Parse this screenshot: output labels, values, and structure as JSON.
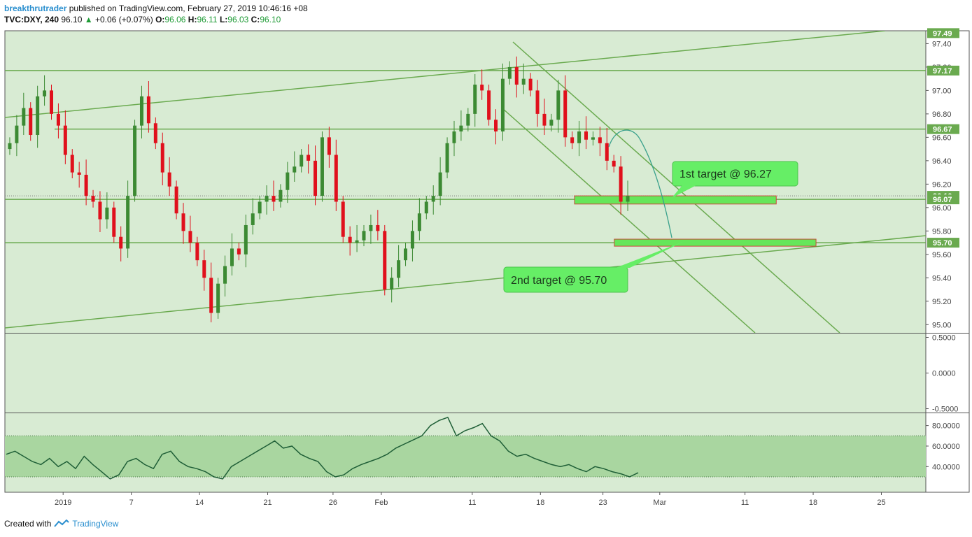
{
  "header": {
    "author": "breakthrutrader",
    "published": "published on TradingView.com, February 27, 2019 10:46:16 +08",
    "symbol": "TVC:DXY, 240",
    "last": "96.10",
    "change_icon": "triangle-up-icon",
    "change": "+0.06 (+0.07%)",
    "open_label": "O:",
    "open": "96.06",
    "high_label": "H:",
    "high": "96.11",
    "low_label": "L:",
    "low": "96.03",
    "close_label": "C:",
    "close": "96.10"
  },
  "footer": {
    "created_with": "Created with",
    "brand": "TradingView",
    "logo_icon": "tradingview-logo-icon"
  },
  "colors": {
    "panel_bg": "#d8ebd3",
    "line_green": "#6aaa4f",
    "candle_up": "#3c8a33",
    "candle_down": "#e0101c",
    "rsi_line": "#1f5f37",
    "rsi_band": "#a9d6a0",
    "zone_fill": "#66e65a",
    "zone_border": "#c9473a",
    "badge_bg": "#6aaa4f",
    "callout_bg": "#66ee66",
    "curve": "#3aa18c"
  },
  "price_axis": {
    "ticks": [
      "97.40",
      "97.20",
      "97.00",
      "96.80",
      "96.60",
      "96.40",
      "96.20",
      "96.00",
      "95.80",
      "95.60",
      "95.40",
      "95.20",
      "95.00"
    ],
    "tick_values": [
      97.4,
      97.2,
      97.0,
      96.8,
      96.6,
      96.4,
      96.2,
      96.0,
      95.8,
      95.6,
      95.4,
      95.2,
      95.0
    ],
    "badges": [
      {
        "label": "97.49",
        "value": 97.49
      },
      {
        "label": "97.17",
        "value": 97.17
      },
      {
        "label": "96.67",
        "value": 96.67
      },
      {
        "label": "96.10",
        "value": 96.1
      },
      {
        "label": "96.07",
        "value": 96.07
      },
      {
        "label": "95.70",
        "value": 95.7
      }
    ]
  },
  "osc_axis": {
    "ticks": [
      "0.5000",
      "0.0000",
      "-0.5000"
    ],
    "tick_values": [
      0.5,
      0.0,
      -0.5
    ]
  },
  "rsi_axis": {
    "ticks": [
      "80.0000",
      "60.0000",
      "40.0000"
    ],
    "tick_values": [
      80,
      60,
      40
    ],
    "band": [
      30,
      70
    ]
  },
  "time_axis": {
    "labels": [
      "2019",
      "7",
      "14",
      "21",
      "26",
      "Feb",
      "11",
      "18",
      "23",
      "Mar",
      "11",
      "18",
      "25"
    ],
    "bar_index": [
      20,
      44,
      68,
      92,
      115,
      132,
      164,
      188,
      210,
      230,
      260,
      284,
      308
    ]
  },
  "horizontal_levels": [
    97.17,
    96.67,
    96.07,
    95.7
  ],
  "zones": [
    {
      "start_bar": 200,
      "end_bar": 271,
      "top": 96.1,
      "bottom": 96.03
    },
    {
      "start_bar": 214,
      "end_bar": 285,
      "top": 95.73,
      "bottom": 95.67
    }
  ],
  "callouts": [
    {
      "text": "1st target @ 96.27",
      "name": "callout-first-target"
    },
    {
      "text": "2nd target @ 95.70",
      "name": "callout-second-target"
    }
  ],
  "chart_data": {
    "type": "candlestick",
    "instrument": "TVC:DXY",
    "interval": "240",
    "price_ylim": [
      94.93,
      97.51
    ],
    "rsi_ylim": [
      15,
      92
    ],
    "closes": [
      96.55,
      96.7,
      96.85,
      96.62,
      96.95,
      97.0,
      96.8,
      96.7,
      96.45,
      96.3,
      96.28,
      96.1,
      96.05,
      95.9,
      96.0,
      95.75,
      95.65,
      96.1,
      96.7,
      96.95,
      96.72,
      96.55,
      96.3,
      96.18,
      95.95,
      95.8,
      95.7,
      95.55,
      95.4,
      95.1,
      95.35,
      95.5,
      95.65,
      95.6,
      95.85,
      95.95,
      96.05,
      96.1,
      96.05,
      96.15,
      96.3,
      96.35,
      96.45,
      96.4,
      96.1,
      96.6,
      96.45,
      96.05,
      95.75,
      95.7,
      95.72,
      95.8,
      95.85,
      95.8,
      95.3,
      95.4,
      95.55,
      95.65,
      95.8,
      95.95,
      96.05,
      96.1,
      96.3,
      96.55,
      96.65,
      96.7,
      96.8,
      97.05,
      97.0,
      96.75,
      96.65,
      97.1,
      97.2,
      97.05,
      97.1,
      97.0,
      96.8,
      96.7,
      96.75,
      97.0,
      96.6,
      96.55,
      96.65,
      96.58,
      96.6,
      96.55,
      96.4,
      96.35,
      96.05,
      96.1
    ],
    "rsi": [
      52,
      55,
      50,
      45,
      42,
      48,
      40,
      45,
      38,
      50,
      42,
      35,
      28,
      32,
      45,
      48,
      42,
      38,
      52,
      55,
      45,
      40,
      38,
      35,
      30,
      28,
      40,
      45,
      50,
      55,
      60,
      65,
      58,
      60,
      52,
      48,
      45,
      35,
      30,
      32,
      38,
      42,
      45,
      48,
      52,
      58,
      62,
      66,
      70,
      80,
      85,
      88,
      70,
      75,
      78,
      82,
      70,
      65,
      55,
      50,
      52,
      48,
      45,
      42,
      40,
      42,
      38,
      35,
      40,
      38,
      35,
      33,
      30,
      34
    ]
  }
}
